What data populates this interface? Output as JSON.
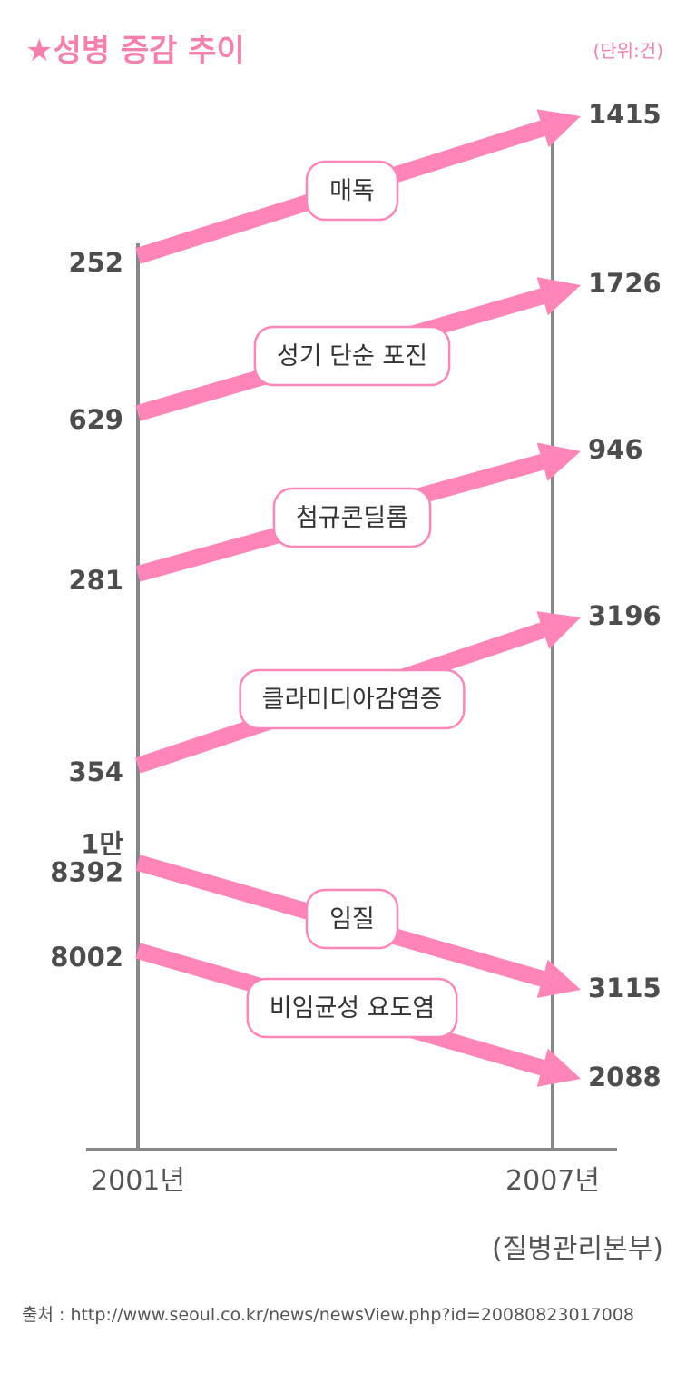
{
  "title": "★성병 증감 추이",
  "unit": "(단위:건)",
  "source": "(질병관리본부)",
  "source_url": "출처 : http://www.seoul.co.kr/news/newsView.php?id=20080823017008",
  "colors": {
    "accent": "#ff85b8",
    "axis": "#888888",
    "text": "#4d4d4d"
  },
  "chart_data": {
    "type": "slope",
    "categories": [
      "2001년",
      "2007년"
    ],
    "series": [
      {
        "name": "매독",
        "values": [
          252,
          1415
        ],
        "labels": [
          "252",
          "1415"
        ]
      },
      {
        "name": "성기 단순 포진",
        "values": [
          629,
          1726
        ],
        "labels": [
          "629",
          "1726"
        ]
      },
      {
        "name": "첨규콘딜롬",
        "values": [
          281,
          946
        ],
        "labels": [
          "281",
          "946"
        ]
      },
      {
        "name": "클라미디아감염증",
        "values": [
          354,
          3196
        ],
        "labels": [
          "354",
          "3196"
        ]
      },
      {
        "name": "임질",
        "values": [
          18392,
          3115
        ],
        "labels": [
          "1만 8392",
          "3115"
        ]
      },
      {
        "name": "비임균성 요도염",
        "values": [
          8002,
          2088
        ],
        "labels": [
          "8002",
          "2088"
        ]
      }
    ]
  }
}
